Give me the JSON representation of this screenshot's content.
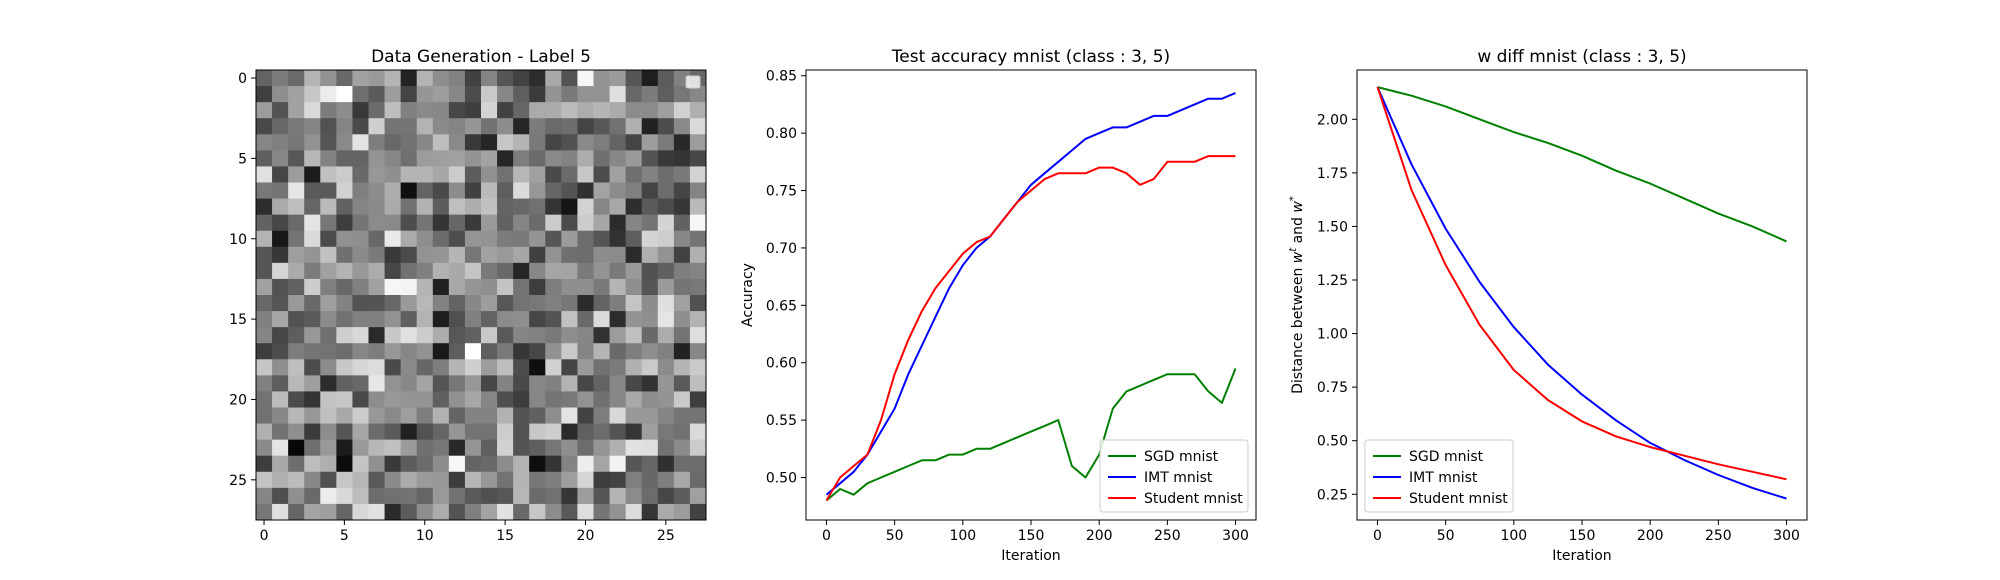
{
  "chart_data": [
    {
      "type": "heatmap",
      "title": "Data Generation - Label 5",
      "xlim": [
        -0.5,
        27.5
      ],
      "ylim": [
        27.5,
        -0.5
      ],
      "xticks": [
        0,
        5,
        10,
        15,
        20,
        25
      ],
      "yticks": [
        0,
        5,
        10,
        15,
        20,
        25
      ],
      "grid_size": [
        28,
        28
      ],
      "colormap": "gray",
      "legend": "upper right (empty)"
    },
    {
      "type": "line",
      "title": "Test accuracy mnist (class : 3, 5)",
      "xlabel": "Iteration",
      "ylabel": "Accuracy",
      "xlim": [
        -15,
        315
      ],
      "ylim": [
        0.463,
        0.855
      ],
      "xticks": [
        0,
        50,
        100,
        150,
        200,
        250,
        300
      ],
      "yticks": [
        0.5,
        0.55,
        0.6,
        0.65,
        0.7,
        0.75,
        0.8,
        0.85
      ],
      "ytick_labels": [
        "0.50",
        "0.55",
        "0.60",
        "0.65",
        "0.70",
        "0.75",
        "0.80",
        "0.85"
      ],
      "legend": "lower right",
      "series": [
        {
          "name": "SGD mnist",
          "color": "#008000",
          "x": [
            0,
            10,
            20,
            30,
            40,
            50,
            60,
            70,
            80,
            90,
            100,
            110,
            120,
            130,
            140,
            150,
            160,
            170,
            180,
            190,
            200,
            210,
            220,
            230,
            240,
            250,
            260,
            270,
            280,
            290,
            300
          ],
          "values": [
            0.48,
            0.49,
            0.485,
            0.495,
            0.5,
            0.505,
            0.51,
            0.515,
            0.515,
            0.52,
            0.52,
            0.525,
            0.525,
            0.53,
            0.535,
            0.54,
            0.545,
            0.55,
            0.51,
            0.5,
            0.52,
            0.56,
            0.575,
            0.58,
            0.585,
            0.59,
            0.59,
            0.59,
            0.575,
            0.565,
            0.595
          ]
        },
        {
          "name": "IMT mnist",
          "color": "#0000ff",
          "x": [
            0,
            10,
            20,
            30,
            40,
            50,
            60,
            70,
            80,
            90,
            100,
            110,
            120,
            130,
            140,
            150,
            160,
            170,
            180,
            190,
            200,
            210,
            220,
            230,
            240,
            250,
            260,
            270,
            280,
            290,
            300
          ],
          "values": [
            0.485,
            0.495,
            0.505,
            0.52,
            0.54,
            0.56,
            0.59,
            0.615,
            0.64,
            0.665,
            0.685,
            0.7,
            0.71,
            0.725,
            0.74,
            0.755,
            0.765,
            0.775,
            0.785,
            0.795,
            0.8,
            0.805,
            0.805,
            0.81,
            0.815,
            0.815,
            0.82,
            0.825,
            0.83,
            0.83,
            0.835
          ]
        },
        {
          "name": "Student mnist",
          "color": "#ff0000",
          "x": [
            0,
            10,
            20,
            30,
            40,
            50,
            60,
            70,
            80,
            90,
            100,
            110,
            120,
            130,
            140,
            150,
            160,
            170,
            180,
            190,
            200,
            210,
            220,
            230,
            240,
            250,
            260,
            270,
            280,
            290,
            300
          ],
          "values": [
            0.48,
            0.5,
            0.51,
            0.52,
            0.55,
            0.59,
            0.62,
            0.645,
            0.665,
            0.68,
            0.695,
            0.705,
            0.71,
            0.725,
            0.74,
            0.75,
            0.76,
            0.765,
            0.765,
            0.765,
            0.77,
            0.77,
            0.765,
            0.755,
            0.76,
            0.775,
            0.775,
            0.775,
            0.78,
            0.78,
            0.78
          ]
        }
      ]
    },
    {
      "type": "line",
      "title": "w diff mnist (class : 3, 5)",
      "xlabel": "Iteration",
      "ylabel": "Distance between w^t and w^*",
      "ylabel_main": "Distance between ",
      "ylabel_w1": "w",
      "ylabel_sup1": "t",
      "ylabel_and": " and ",
      "ylabel_w2": "w",
      "ylabel_sup2": "*",
      "xlim": [
        -15,
        315
      ],
      "ylim": [
        0.13,
        2.23
      ],
      "xticks": [
        0,
        50,
        100,
        150,
        200,
        250,
        300
      ],
      "yticks": [
        0.25,
        0.5,
        0.75,
        1.0,
        1.25,
        1.5,
        1.75,
        2.0
      ],
      "ytick_labels": [
        "0.25",
        "0.50",
        "0.75",
        "1.00",
        "1.25",
        "1.50",
        "1.75",
        "2.00"
      ],
      "legend": "lower left",
      "series": [
        {
          "name": "SGD mnist",
          "color": "#008000",
          "x": [
            0,
            25,
            50,
            75,
            100,
            125,
            150,
            175,
            200,
            225,
            250,
            275,
            300
          ],
          "values": [
            2.15,
            2.11,
            2.06,
            2.0,
            1.94,
            1.89,
            1.83,
            1.76,
            1.7,
            1.63,
            1.56,
            1.5,
            1.43
          ]
        },
        {
          "name": "IMT mnist",
          "color": "#0000ff",
          "x": [
            0,
            25,
            50,
            75,
            100,
            125,
            150,
            175,
            200,
            225,
            250,
            275,
            300
          ],
          "values": [
            2.15,
            1.79,
            1.49,
            1.24,
            1.03,
            0.855,
            0.715,
            0.595,
            0.49,
            0.41,
            0.34,
            0.28,
            0.23
          ]
        },
        {
          "name": "Student mnist",
          "color": "#ff0000",
          "x": [
            0,
            25,
            50,
            75,
            100,
            125,
            150,
            175,
            200,
            225,
            250,
            275,
            300
          ],
          "values": [
            2.15,
            1.67,
            1.32,
            1.04,
            0.83,
            0.69,
            0.59,
            0.52,
            0.47,
            0.43,
            0.39,
            0.355,
            0.32
          ]
        }
      ]
    }
  ]
}
